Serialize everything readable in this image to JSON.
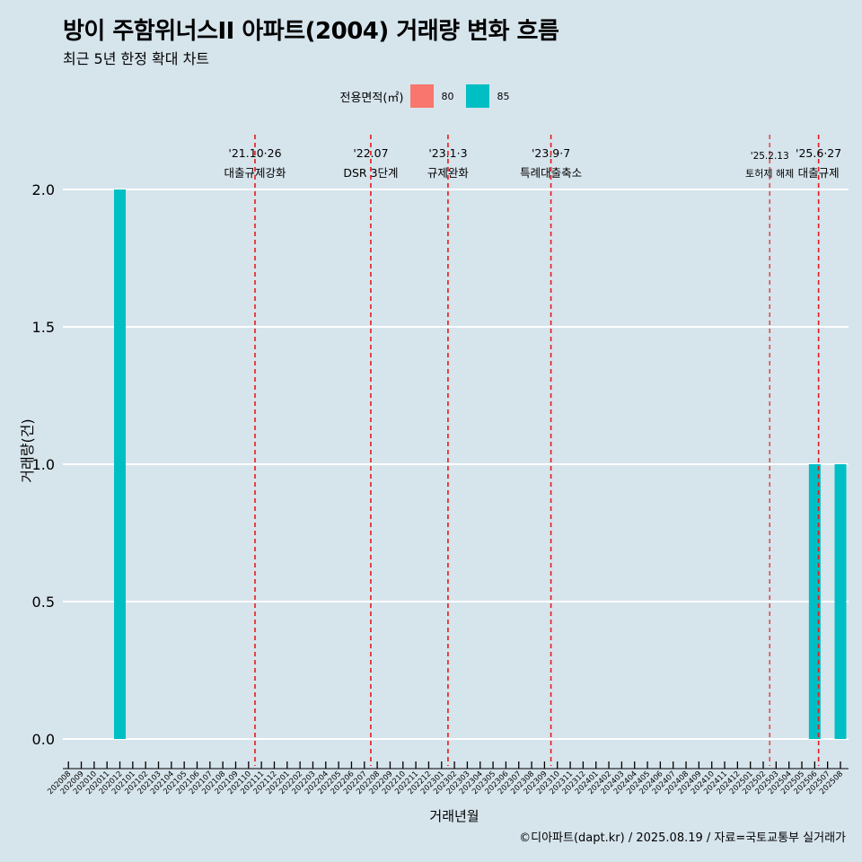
{
  "header": {
    "title": "방이 주함위너스II 아파트(2004) 거래량 변화 흐름",
    "subtitle": "최근 5년 한정 확대 차트"
  },
  "legend": {
    "title": "전용면적(㎡)",
    "items": [
      {
        "label": "80",
        "color": "#f8766d"
      },
      {
        "label": "85",
        "color": "#00bfc4"
      }
    ]
  },
  "caption": "©디아파트(dapt.kr) / 2025.08.19 / 자료=국토교통부 실거래가",
  "chart_data": {
    "type": "bar",
    "xlabel": "거래년월",
    "ylabel": "거래량(건)",
    "ylim": [
      0,
      2
    ],
    "yticks": [
      0.0,
      0.5,
      1.0,
      1.5,
      2.0
    ],
    "ytick_labels": [
      "0.0",
      "0.5",
      "1.0",
      "1.5",
      "2.0"
    ],
    "categories": [
      "202008",
      "202009",
      "202010",
      "202011",
      "202012",
      "202101",
      "202102",
      "202103",
      "202104",
      "202105",
      "202106",
      "202107",
      "202108",
      "202109",
      "202110",
      "202111",
      "202112",
      "202201",
      "202202",
      "202203",
      "202204",
      "202205",
      "202206",
      "202207",
      "202208",
      "202209",
      "202210",
      "202211",
      "202212",
      "202301",
      "202302",
      "202303",
      "202304",
      "202305",
      "202306",
      "202307",
      "202308",
      "202309",
      "202310",
      "202311",
      "202312",
      "202401",
      "202402",
      "202403",
      "202404",
      "202405",
      "202406",
      "202407",
      "202408",
      "202409",
      "202410",
      "202411",
      "202412",
      "202501",
      "202502",
      "202503",
      "202504",
      "202505",
      "202506",
      "202507",
      "202508"
    ],
    "series": [
      {
        "name": "80",
        "color": "#f8766d",
        "points": []
      },
      {
        "name": "85",
        "color": "#00bfc4",
        "points": [
          {
            "x": "202012",
            "y": 2
          },
          {
            "x": "202506",
            "y": 1
          },
          {
            "x": "202508",
            "y": 1
          }
        ]
      }
    ],
    "annotations": [
      {
        "date": "'21.10·26",
        "label": "대출규제강화",
        "pos": 14.5
      },
      {
        "date": "'22.07",
        "label": "DSR 3단계",
        "pos": 23.5
      },
      {
        "date": "'23.1·3",
        "label": "규제완화",
        "pos": 29.5
      },
      {
        "date": "'23.9·7",
        "label": "특례대출축소",
        "pos": 37.5
      },
      {
        "date": "'25.2.13",
        "label": "토허제 해제",
        "pos": 54.5,
        "small": true
      },
      {
        "date": "'25.6·27",
        "label": "대출규제",
        "pos": 58.3
      }
    ]
  }
}
